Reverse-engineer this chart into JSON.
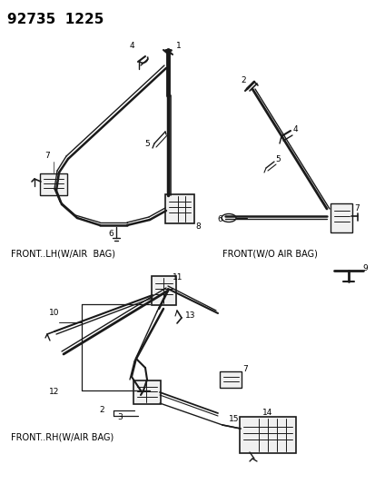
{
  "title_text": "92735  1225",
  "bg_color": "#ffffff",
  "line_color": "#1a1a1a",
  "label_font_size": 6.5,
  "title_font_size": 11,
  "section_labels": {
    "front_lh": "FRONT..LH(W/AIR  BAG)",
    "front_wo": "FRONT(W/O AIR BAG)",
    "front_rh": "FRONT..RH(W/AIR BAG)"
  }
}
